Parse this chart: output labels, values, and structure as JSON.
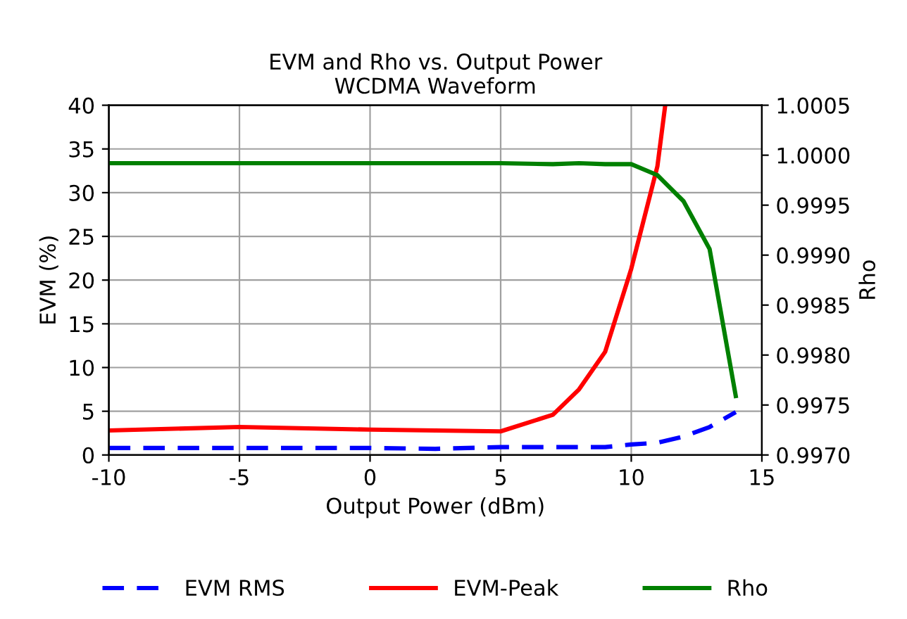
{
  "chart_data": {
    "type": "line",
    "title": "EVM and Rho vs. Output Power\nWCDMA Waveform",
    "xlabel": "Output Power (dBm)",
    "ylabel": "EVM (%)",
    "y2label": "Rho",
    "xlim": [
      -10,
      15
    ],
    "xticks": [
      -10,
      -5,
      0,
      5,
      10,
      15
    ],
    "ylim": [
      0,
      40
    ],
    "yticks": [
      0,
      5,
      10,
      15,
      20,
      25,
      30,
      35,
      40
    ],
    "y2lim": [
      0.997,
      1.0005
    ],
    "y2ticks": [
      {
        "value": 0.997,
        "label": "0.9970"
      },
      {
        "value": 0.9975,
        "label": "0.9975"
      },
      {
        "value": 0.998,
        "label": "0.9980"
      },
      {
        "value": 0.9985,
        "label": "0.9985"
      },
      {
        "value": 0.999,
        "label": "0.9990"
      },
      {
        "value": 0.9995,
        "label": "0.9995"
      },
      {
        "value": 1.0,
        "label": "1.0000"
      },
      {
        "value": 1.0005,
        "label": "1.0005"
      }
    ],
    "grid": true,
    "legend": "bottom",
    "marker": "none",
    "series": [
      {
        "name": "EVM RMS",
        "color": "#0000ff",
        "line_style": "dashed",
        "x": [
          -10,
          -5,
          0,
          2.5,
          5,
          8,
          9,
          10,
          11,
          12,
          13,
          14
        ],
        "values": [
          0.8,
          0.8,
          0.8,
          0.7,
          0.9,
          0.9,
          0.9,
          1.2,
          1.4,
          2.1,
          3.2,
          4.9
        ]
      },
      {
        "name": "EVM-Peak",
        "color": "#ff0000",
        "line_style": "solid",
        "x": [
          -10,
          -5,
          0,
          5,
          7,
          8,
          9,
          10,
          11,
          11.3
        ],
        "values": [
          2.8,
          3.2,
          2.9,
          2.7,
          4.6,
          7.5,
          11.8,
          21.3,
          33,
          40
        ]
      },
      {
        "name": "Rho",
        "color": "#008000",
        "line_style": "solid",
        "axis": "y2",
        "x": [
          -10,
          -5,
          0,
          5,
          7,
          8,
          9,
          10,
          11,
          12,
          13,
          14
        ],
        "values": [
          0.99992,
          0.99992,
          0.99992,
          0.99992,
          0.99991,
          0.99992,
          0.99991,
          0.99991,
          0.9998,
          0.99954,
          0.99906,
          0.99759
        ]
      }
    ]
  }
}
